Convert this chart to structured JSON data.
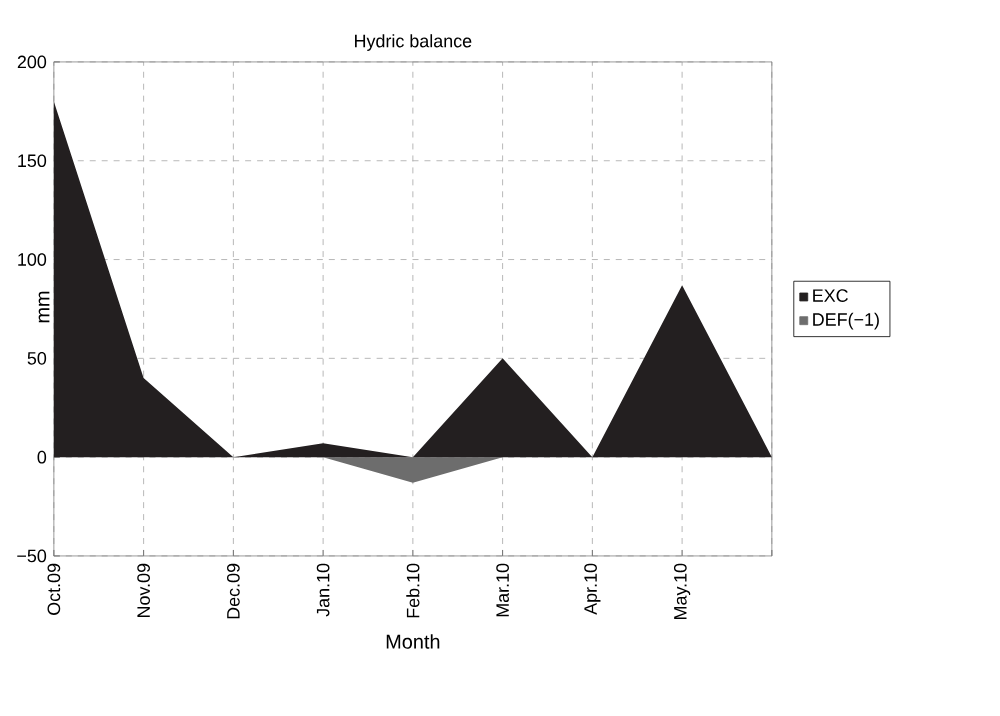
{
  "chart_data": {
    "type": "area",
    "title": "Hydric balance",
    "xlabel": "Month",
    "ylabel": "mm",
    "categories": [
      "Oct.09",
      "Nov.09",
      "Dec.09",
      "Jan.10",
      "Feb.10",
      "Mar.10",
      "Apr.10",
      "May.10",
      null
    ],
    "series": [
      {
        "name": "EXC",
        "color": "#231f20",
        "values": [
          180,
          40,
          0,
          7,
          0,
          50,
          0,
          87,
          0
        ]
      },
      {
        "name": "DEF(−1)",
        "color": "#6d6d6d",
        "values": [
          0,
          0,
          0,
          0,
          -13,
          0,
          0,
          0,
          0
        ]
      }
    ],
    "ylim": [
      -50,
      200
    ],
    "yticks": [
      {
        "value": -50,
        "label": "−50"
      },
      0,
      50,
      100,
      150,
      200
    ],
    "grid": true,
    "legend": "right"
  }
}
